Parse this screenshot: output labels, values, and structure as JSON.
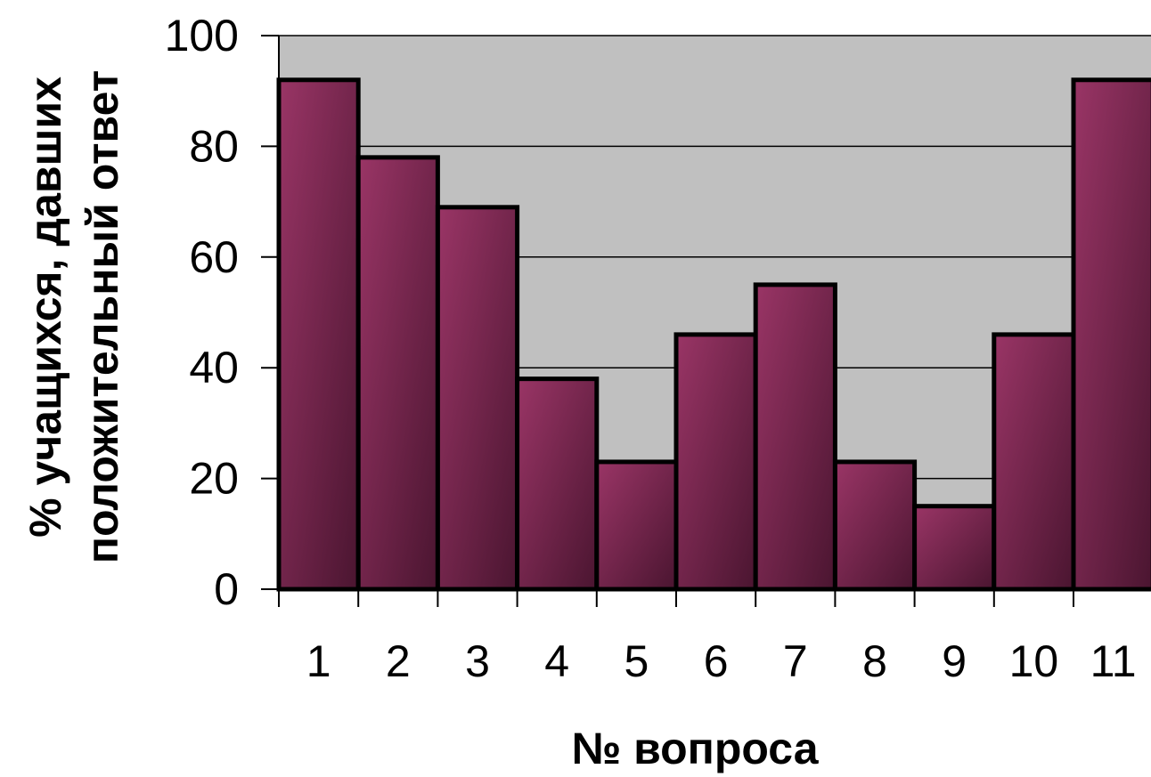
{
  "chart_data": {
    "type": "bar",
    "title": "",
    "xlabel": "№ вопроса",
    "ylabel_line1": "% учащихся, давших",
    "ylabel_line2": "положительный ответ",
    "categories": [
      "1",
      "2",
      "3",
      "4",
      "5",
      "6",
      "7",
      "8",
      "9",
      "10",
      "11"
    ],
    "values": [
      92,
      78,
      69,
      38,
      23,
      46,
      55,
      23,
      15,
      46,
      92
    ],
    "ylim": [
      0,
      100
    ],
    "yticks": [
      0,
      20,
      40,
      60,
      80,
      100
    ],
    "grid": true,
    "legend": "none",
    "colors": {
      "plot_background": "#c0c0c0",
      "bar_light": "#9a3566",
      "bar_dark": "#4a1530",
      "bar_outline": "#000000",
      "gridline": "#000000"
    }
  }
}
